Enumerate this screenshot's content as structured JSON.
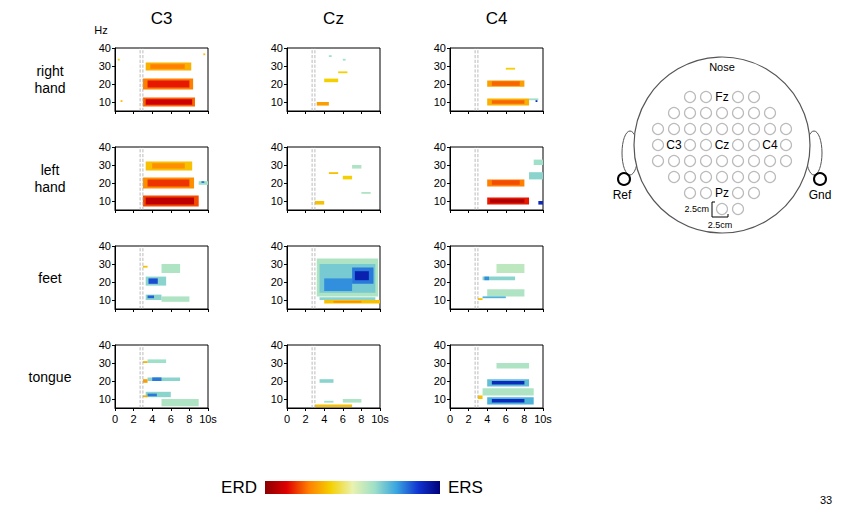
{
  "chart_data": {
    "type": "heatmap",
    "y_label": "Hz",
    "columns": [
      "C3",
      "Cz",
      "C4"
    ],
    "rows": [
      "right hand",
      "left hand",
      "feet",
      "tongue"
    ],
    "xlim": [
      0,
      10
    ],
    "xticks": [
      0,
      2,
      4,
      6,
      8,
      {
        "value": 10,
        "label": "10s"
      }
    ],
    "ylim": [
      5,
      40
    ],
    "yticks": [
      10,
      20,
      30,
      40
    ],
    "cue_lines": [
      2.7,
      3
    ],
    "color_range": [
      -1,
      1
    ],
    "color_bar_labels": [
      "ERD",
      "ERS"
    ],
    "cells": [
      [
        [
          [
            3,
            8.6,
            7.5,
            12.5,
            -0.55
          ],
          [
            3.3,
            8.3,
            8.5,
            11.5,
            -0.8
          ],
          [
            3,
            8.4,
            17,
            23,
            -0.5
          ],
          [
            3.5,
            8,
            18,
            22,
            -0.7
          ],
          [
            3.3,
            8.2,
            27.5,
            32,
            -0.35
          ],
          [
            3.8,
            7.5,
            28.5,
            31,
            -0.5
          ],
          [
            9.5,
            9.7,
            36,
            37,
            -0.3
          ],
          [
            0.3,
            0.5,
            33,
            34,
            -0.25
          ],
          [
            0.6,
            0.8,
            10,
            11,
            -0.3
          ]
        ],
        [
          [
            3.2,
            4.5,
            8,
            10,
            -0.4
          ],
          [
            4,
            5.5,
            21,
            23,
            -0.25
          ],
          [
            5.5,
            6.5,
            26,
            27,
            -0.25
          ],
          [
            6,
            6.3,
            33,
            34,
            0.25
          ],
          [
            4.5,
            4.8,
            35,
            36,
            0.25
          ]
        ],
        [
          [
            4,
            8.5,
            8,
            12,
            -0.35
          ],
          [
            4.5,
            8,
            9,
            11,
            -0.55
          ],
          [
            4,
            8,
            18.5,
            22,
            -0.4
          ],
          [
            4.5,
            7.5,
            19,
            21.5,
            -0.55
          ],
          [
            6,
            7,
            28,
            29,
            -0.25
          ],
          [
            8.5,
            9.5,
            11,
            12,
            0.25
          ],
          [
            9.2,
            9.4,
            10,
            11,
            0.8
          ]
        ]
      ],
      [
        [
          [
            3,
            9,
            7,
            13,
            -0.6
          ],
          [
            3.3,
            8.5,
            8,
            12,
            -0.85
          ],
          [
            3,
            8.5,
            17,
            23,
            -0.45
          ],
          [
            3.5,
            8,
            18,
            22,
            -0.65
          ],
          [
            3.3,
            8.3,
            27,
            32,
            -0.3
          ],
          [
            4,
            7.5,
            28,
            31,
            -0.45
          ],
          [
            9,
            10,
            19,
            21,
            0.25
          ],
          [
            9.3,
            9.6,
            20,
            21,
            0.6
          ]
        ],
        [
          [
            3,
            4,
            8,
            10,
            -0.3
          ],
          [
            4.5,
            5.5,
            25,
            26,
            -0.3
          ],
          [
            6,
            7,
            22,
            24,
            -0.25
          ],
          [
            7,
            8,
            28,
            30,
            0.2
          ],
          [
            8,
            9,
            14,
            15,
            0.2
          ]
        ],
        [
          [
            4,
            8.5,
            8,
            12,
            -0.7
          ],
          [
            4.3,
            8,
            9,
            11,
            -0.9
          ],
          [
            4,
            8,
            18,
            22,
            -0.5
          ],
          [
            4.5,
            7.5,
            19,
            21.5,
            -0.6
          ],
          [
            8.5,
            10,
            22,
            26,
            0.3
          ],
          [
            9.5,
            10,
            8,
            10,
            0.8
          ],
          [
            9,
            10,
            30,
            33,
            0.25
          ]
        ]
      ],
      [
        [
          [
            5,
            8,
            9,
            12,
            0.2
          ],
          [
            5,
            7,
            25,
            30,
            0.2
          ],
          [
            3.3,
            5.5,
            18,
            23,
            0.3
          ],
          [
            3.6,
            4.6,
            19,
            22,
            0.7
          ],
          [
            3.3,
            5,
            10,
            13,
            0.3
          ],
          [
            3.5,
            4.2,
            11,
            12.5,
            0.65
          ],
          [
            3,
            3.5,
            28,
            29,
            -0.3
          ]
        ],
        [
          [
            3.2,
            9.8,
            12,
            33,
            0.2
          ],
          [
            3.5,
            9.5,
            14,
            30,
            0.35
          ],
          [
            4,
            7,
            15,
            22,
            0.55
          ],
          [
            7,
            9.3,
            19,
            28,
            0.6
          ],
          [
            7.3,
            8.8,
            21,
            26,
            0.85
          ],
          [
            3.5,
            9.5,
            10,
            11.5,
            0.3
          ],
          [
            4,
            10,
            8,
            10,
            -0.3
          ],
          [
            5,
            8,
            8.5,
            9.5,
            -0.45
          ]
        ],
        [
          [
            4,
            8,
            12,
            16,
            0.2
          ],
          [
            5,
            8,
            25,
            30,
            0.15
          ],
          [
            3.5,
            7,
            21,
            23,
            0.3
          ],
          [
            3.7,
            4.2,
            21,
            23,
            0.55
          ],
          [
            3.5,
            6,
            11,
            12,
            0.45
          ],
          [
            3,
            3.5,
            10,
            11,
            -0.3
          ]
        ]
      ],
      [
        [
          [
            5,
            9,
            6,
            10,
            0.2
          ],
          [
            3.3,
            6,
            11,
            14,
            0.3
          ],
          [
            3.5,
            4.5,
            11.5,
            13,
            0.6
          ],
          [
            3.5,
            7,
            20,
            22,
            0.3
          ],
          [
            4,
            5,
            20,
            22,
            0.6
          ],
          [
            3.5,
            5.5,
            30,
            32,
            0.25
          ],
          [
            3,
            3.5,
            19,
            21,
            -0.4
          ],
          [
            3,
            3.5,
            30,
            31,
            -0.35
          ],
          [
            3,
            3.5,
            11,
            12,
            -0.35
          ]
        ],
        [
          [
            3.5,
            5,
            19,
            21,
            0.3
          ],
          [
            4,
            5,
            8,
            9,
            0.25
          ],
          [
            3,
            7,
            5.5,
            7,
            -0.3
          ],
          [
            6,
            8,
            8,
            10,
            0.2
          ]
        ],
        [
          [
            3.5,
            9,
            12,
            16,
            0.2
          ],
          [
            5,
            8.5,
            27,
            30,
            0.2
          ],
          [
            4,
            9,
            7,
            11,
            0.45
          ],
          [
            4.5,
            8,
            8,
            10,
            0.8
          ],
          [
            4,
            8.5,
            17,
            21,
            0.4
          ],
          [
            4.5,
            8,
            18,
            20,
            0.8
          ],
          [
            3,
            3.5,
            10,
            12,
            -0.3
          ]
        ]
      ]
    ]
  },
  "head": {
    "nose": "Nose",
    "electrodes": [
      "Fz",
      "C3",
      "Cz",
      "C4",
      "Pz"
    ],
    "reference": "Ref",
    "ground": "Gnd",
    "spacing": [
      "2.5cm",
      "2.5cm"
    ]
  },
  "page_number": "33"
}
